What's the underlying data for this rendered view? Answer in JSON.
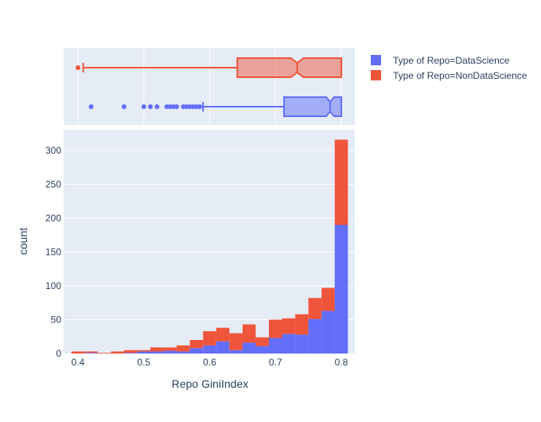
{
  "chart_data": {
    "type": "histogram+box",
    "xlabel": "Repo GiniIndex",
    "ylabel": "count",
    "x_ticks": [
      "0.4",
      "0.5",
      "0.6",
      "0.7",
      "0.8"
    ],
    "x_tick_values": [
      0.4,
      0.5,
      0.6,
      0.7,
      0.8
    ],
    "y_ticks": [
      "0",
      "50",
      "100",
      "150",
      "200",
      "250",
      "300"
    ],
    "y_tick_values": [
      0,
      50,
      100,
      150,
      200,
      250,
      300
    ],
    "xlim": [
      0.378,
      0.82
    ],
    "ylim": [
      0,
      333
    ],
    "barmode": "stack",
    "bin_width": 0.02,
    "bin_starts": [
      0.39,
      0.41,
      0.43,
      0.45,
      0.47,
      0.49,
      0.51,
      0.53,
      0.55,
      0.57,
      0.59,
      0.61,
      0.63,
      0.65,
      0.67,
      0.69,
      0.71,
      0.73,
      0.75,
      0.77,
      0.79
    ],
    "series": [
      {
        "name": "Type of Repo=DataScience",
        "color": "#636efa",
        "values": [
          0,
          1,
          0,
          0,
          1,
          3,
          3,
          4,
          3,
          8,
          12,
          18,
          5,
          16,
          11,
          23,
          29,
          28,
          51,
          63,
          190
        ]
      },
      {
        "name": "Type of Repo=NonDataScience",
        "color": "#ef553b",
        "values": [
          3,
          2,
          1,
          3,
          4,
          2,
          6,
          5,
          9,
          12,
          21,
          20,
          25,
          27,
          13,
          27,
          23,
          30,
          31,
          34,
          126
        ]
      }
    ],
    "box_marginal": [
      {
        "name": "Type of Repo=NonDataScience",
        "color": "#ef553b",
        "notched": true,
        "lower_fence": 0.408,
        "q1": 0.642,
        "median": 0.733,
        "q3": 0.8,
        "upper_fence": 0.8,
        "outliers": [
          0.4
        ]
      },
      {
        "name": "Type of Repo=DataScience",
        "color": "#636efa",
        "notched": true,
        "lower_fence": 0.59,
        "q1": 0.713,
        "median": 0.783,
        "q3": 0.8,
        "upper_fence": 0.8,
        "outliers": [
          0.42,
          0.47,
          0.5,
          0.51,
          0.52,
          0.535,
          0.54,
          0.545,
          0.55,
          0.56,
          0.565,
          0.57,
          0.575,
          0.58,
          0.585
        ]
      }
    ],
    "legend_position": "top-right outside",
    "grid": true
  },
  "legend": {
    "items": [
      {
        "label": "Type of Repo=DataScience",
        "color": "#636efa"
      },
      {
        "label": "Type of Repo=NonDataScience",
        "color": "#ef553b"
      }
    ]
  }
}
